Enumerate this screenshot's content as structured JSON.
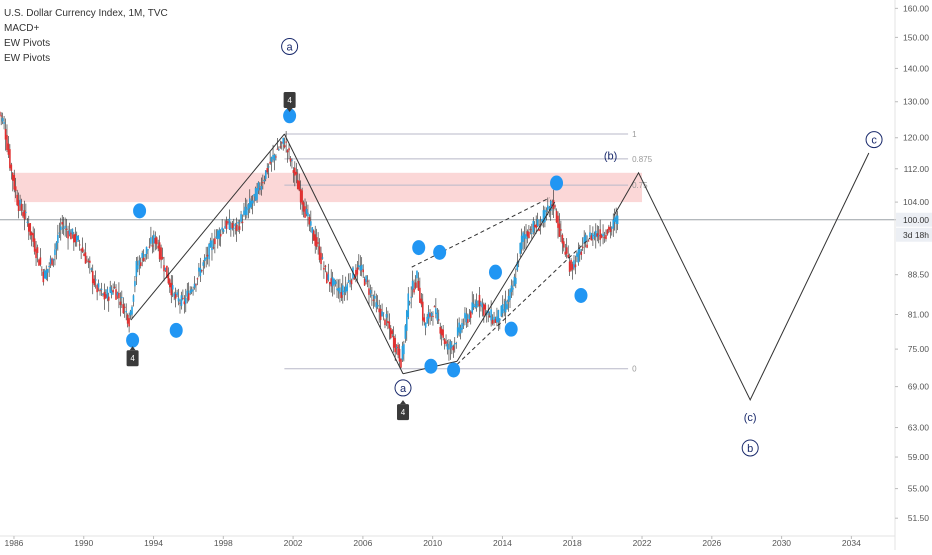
{
  "legend": {
    "title": "U.S. Dollar Currency Index, 1M, TVC",
    "indicators": [
      "MACD+",
      "EW Pivots",
      "EW Pivots"
    ]
  },
  "colors": {
    "up": "#26a0e0",
    "down": "#e03030",
    "pivot_dot": "#2196f3",
    "pivot_flag": "#3a3a3a",
    "projection": "#333333",
    "wave_line": "#333333",
    "fib_line": "#b8b8c8",
    "resistance_zone": "#fbd7d7",
    "price_line": "#9aa0a6",
    "price_badge": "#eceff4",
    "badge_text": "#333333"
  },
  "chart_data": {
    "type": "line",
    "title": "U.S. Dollar Currency Index, 1M, TVC",
    "y_axis": {
      "ticks": [
        160.0,
        150.0,
        140.0,
        130.0,
        120.0,
        112.0,
        104.0,
        100.0,
        88.5,
        81.0,
        75.0,
        69.0,
        63.0,
        59.0,
        55.0,
        51.5
      ],
      "scale": "log",
      "ylim": [
        49.5,
        163
      ]
    },
    "x_axis": {
      "ticks": [
        1986,
        1990,
        1994,
        1998,
        2002,
        2006,
        2010,
        2014,
        2018,
        2022,
        2026,
        2030,
        2034
      ],
      "xlim": [
        1985.2,
        2036.5
      ]
    },
    "current_price": {
      "label": "100.00",
      "value": 100.0
    },
    "time_badge": "3d 18h",
    "series": [
      {
        "kind": "price",
        "x": [
          1985.1,
          1985.5,
          1985.9,
          1986.3,
          1986.8,
          1987.3,
          1987.8,
          1988.3,
          1988.8,
          1989.3,
          1989.8,
          1990.3,
          1990.8,
          1991.3,
          1991.8,
          1992.3,
          1992.7,
          1993.1,
          1993.6,
          1994.2,
          1994.8,
          1995.3,
          1995.8,
          1996.4,
          1997.0,
          1997.6,
          1998.2,
          1998.8,
          1999.4,
          2000.0,
          2000.6,
          2001.2,
          2001.6,
          2002.0,
          2002.5,
          2003.0,
          2003.5,
          2004.0,
          2004.5,
          2004.9,
          2005.4,
          2005.9,
          2006.4,
          2006.9,
          2007.4,
          2007.9,
          2008.3,
          2008.7,
          2009.2,
          2009.6,
          2010.1,
          2010.5,
          2010.9,
          2011.3,
          2011.7,
          2012.2,
          2012.7,
          2013.2,
          2013.7,
          2014.2,
          2014.7,
          2015.2,
          2015.7,
          2016.2,
          2016.7,
          2017.0,
          2017.5,
          2018.0,
          2018.4,
          2018.8,
          2019.3,
          2019.8,
          2020.3,
          2020.6
        ],
        "values": [
          128,
          124,
          112,
          104,
          100,
          94,
          88,
          92,
          99,
          97,
          95,
          91,
          86,
          84,
          86,
          83,
          80,
          90,
          93,
          96,
          89,
          84,
          83,
          87,
          91,
          96,
          99,
          98,
          102,
          106,
          112,
          117,
          119,
          113,
          106,
          99,
          94,
          88,
          86,
          85,
          88,
          90,
          86,
          82,
          80,
          76,
          73,
          84,
          88,
          79,
          82,
          79,
          75,
          76,
          79,
          81,
          84,
          81,
          80,
          82,
          86,
          96,
          98,
          99,
          102,
          104,
          95,
          90,
          92,
          95,
          97,
          97,
          98,
          100
        ]
      }
    ],
    "wave_lines": [
      {
        "x": [
          1992.7,
          2001.5
        ],
        "y": [
          80,
          121
        ]
      },
      {
        "x": [
          2001.5,
          2008.3
        ],
        "y": [
          121,
          71
        ]
      },
      {
        "x": [
          2008.3,
          2011.4
        ],
        "y": [
          71,
          73
        ]
      },
      {
        "x": [
          2011.4,
          2017.0
        ],
        "y": [
          73,
          104
        ]
      }
    ],
    "channel_lines": [
      {
        "x": [
          2008.8,
          2016.7
        ],
        "y": [
          90,
          105
        ]
      },
      {
        "x": [
          2011.4,
          2019.0
        ],
        "y": [
          72.5,
          96
        ]
      }
    ],
    "projection": {
      "x": [
        2020.4,
        2021.8,
        2028.2,
        2035.0
      ],
      "y": [
        101,
        111,
        67,
        116
      ]
    },
    "resistance_zone": {
      "x": [
        1986.0,
        2022.0
      ],
      "y": [
        104,
        111
      ]
    },
    "fib_levels": [
      {
        "label": "1",
        "value": 121
      },
      {
        "label": "0.875",
        "value": 114.5
      },
      {
        "label": "0.75",
        "value": 108
      },
      {
        "label": "0",
        "value": 71.8
      }
    ],
    "fib_span": [
      2001.5,
      2021.2
    ],
    "pivot_dots": [
      {
        "x": 1993.2,
        "y": 102
      },
      {
        "x": 2001.8,
        "y": 126
      },
      {
        "x": 1992.8,
        "y": 76.5
      },
      {
        "x": 1995.3,
        "y": 78.2
      },
      {
        "x": 2009.2,
        "y": 94
      },
      {
        "x": 2010.4,
        "y": 93
      },
      {
        "x": 2009.9,
        "y": 72.2
      },
      {
        "x": 2011.2,
        "y": 71.6
      },
      {
        "x": 2013.6,
        "y": 89
      },
      {
        "x": 2014.5,
        "y": 78.4
      },
      {
        "x": 2017.1,
        "y": 108.5
      },
      {
        "x": 2018.5,
        "y": 84.5
      }
    ],
    "pivot_flags": [
      {
        "label": "4",
        "x": 2001.8,
        "y": 130.5,
        "pointer": "down"
      },
      {
        "label": "4",
        "x": 1992.8,
        "y": 73.5,
        "pointer": "up"
      },
      {
        "label": "4",
        "x": 2008.3,
        "y": 65.2,
        "pointer": "up"
      }
    ],
    "wave_labels": [
      {
        "text": "a",
        "circled": true,
        "x": 2001.8,
        "y": 147
      },
      {
        "text": "a",
        "circled": true,
        "x": 2008.3,
        "y": 68.8
      },
      {
        "text": "(b)",
        "circled": false,
        "x": 2020.2,
        "y": 115.3
      },
      {
        "text": "(c)",
        "circled": false,
        "x": 2028.2,
        "y": 64.5
      },
      {
        "text": "b",
        "circled": true,
        "x": 2028.2,
        "y": 60.2
      },
      {
        "text": "c",
        "circled": true,
        "x": 2035.3,
        "y": 119.5
      }
    ]
  }
}
